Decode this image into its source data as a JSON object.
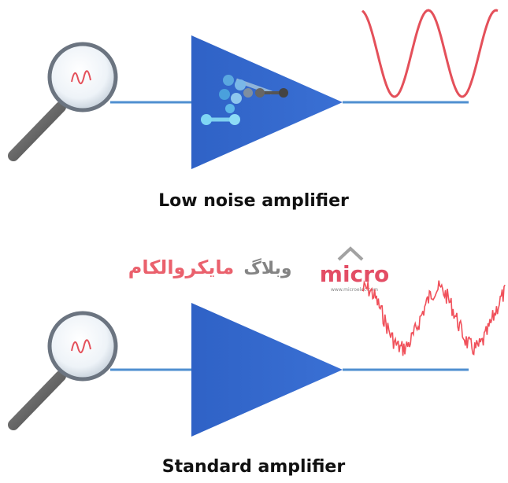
{
  "diagram": {
    "panels": [
      {
        "label": "Low noise amplifier"
      },
      {
        "label": "Standard amplifier"
      }
    ],
    "watermark": {
      "persian_title": "مایکروالکام",
      "persian_prefix": "وبلاگ",
      "logo": "micro",
      "url": "www.microelec.com"
    }
  }
}
